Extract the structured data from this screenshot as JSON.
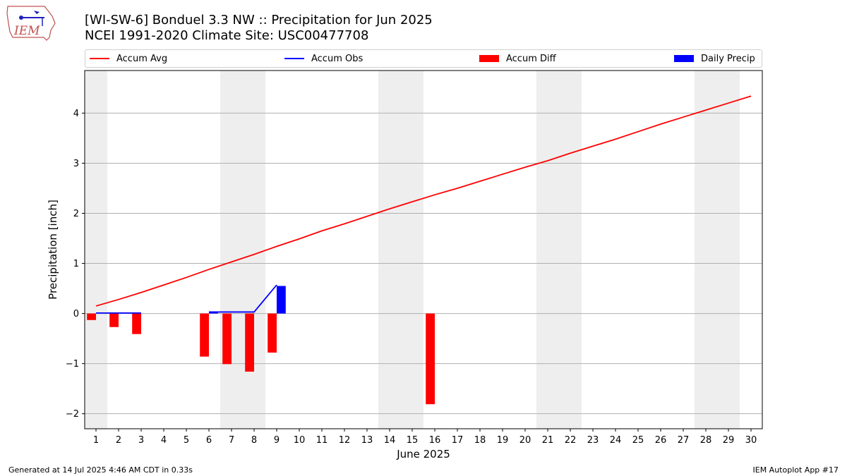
{
  "header": {
    "title_line1": "[WI-SW-6] Bonduel 3.3 NW :: Precipitation for Jun 2025",
    "title_line2": "NCEI 1991-2020 Climate Site: USC00477708"
  },
  "logo": {
    "text": "IEM"
  },
  "legend": {
    "items": [
      {
        "label": "Accum Avg",
        "color": "#ff0000",
        "kind": "line"
      },
      {
        "label": "Accum Obs",
        "color": "#0000ff",
        "kind": "line"
      },
      {
        "label": "Accum Diff",
        "color": "#ff0000",
        "kind": "box"
      },
      {
        "label": "Daily Precip",
        "color": "#0000ff",
        "kind": "box"
      }
    ]
  },
  "footer": {
    "left": "Generated at 14 Jul 2025 4:46 AM CDT in 0.33s",
    "right": "IEM Autoplot App #17"
  },
  "chart_data": {
    "type": "bar",
    "xlabel": "June 2025",
    "ylabel": "Precipitation [inch]",
    "xlim": [
      0.5,
      30.5
    ],
    "ylim": [
      -2.3,
      4.85
    ],
    "yticks": [
      -2,
      -1,
      0,
      1,
      2,
      3,
      4
    ],
    "ytick_labels": [
      "−2",
      "−1",
      "0",
      "1",
      "2",
      "3",
      "4"
    ],
    "xticks": [
      1,
      2,
      3,
      4,
      5,
      6,
      7,
      8,
      9,
      10,
      11,
      12,
      13,
      14,
      15,
      16,
      17,
      18,
      19,
      20,
      21,
      22,
      23,
      24,
      25,
      26,
      27,
      28,
      29,
      30
    ],
    "grid": "y",
    "weekend_shading": [
      [
        0.5,
        1.5
      ],
      [
        6.5,
        8.5
      ],
      [
        13.5,
        15.5
      ],
      [
        20.5,
        22.5
      ],
      [
        27.5,
        29.5
      ]
    ],
    "shade_color": "#eeeeee",
    "accum_avg": {
      "name": "Accum Avg",
      "color": "#ff0000",
      "x": [
        1,
        2,
        3,
        4,
        5,
        6,
        7,
        8,
        9,
        10,
        11,
        12,
        13,
        14,
        15,
        16,
        17,
        18,
        19,
        20,
        21,
        22,
        23,
        24,
        25,
        26,
        27,
        28,
        29,
        30
      ],
      "y": [
        0.15,
        0.28,
        0.42,
        0.57,
        0.72,
        0.88,
        1.03,
        1.18,
        1.34,
        1.49,
        1.65,
        1.79,
        1.94,
        2.09,
        2.23,
        2.37,
        2.5,
        2.64,
        2.78,
        2.92,
        3.05,
        3.2,
        3.34,
        3.48,
        3.63,
        3.78,
        3.92,
        4.06,
        4.2,
        4.34
      ]
    },
    "accum_obs": {
      "name": "Accum Obs",
      "color": "#0000ff",
      "segments": [
        {
          "x": [
            1,
            2,
            3
          ],
          "y": [
            0.01,
            0.01,
            0.01
          ]
        },
        {
          "x": [
            6,
            7,
            8,
            9
          ],
          "y": [
            0.03,
            0.03,
            0.03,
            0.57
          ]
        }
      ]
    },
    "accum_diff": {
      "name": "Accum Diff",
      "color": "#ff0000",
      "x": [
        1,
        2,
        3,
        6,
        7,
        8,
        9,
        16
      ],
      "y": [
        -0.13,
        -0.27,
        -0.41,
        -0.86,
        -1.01,
        -1.16,
        -0.78,
        -1.81
      ]
    },
    "daily_precip": {
      "name": "Daily Precip",
      "color": "#0000ff",
      "x": [
        6,
        9
      ],
      "y": [
        0.02,
        0.55
      ]
    }
  }
}
